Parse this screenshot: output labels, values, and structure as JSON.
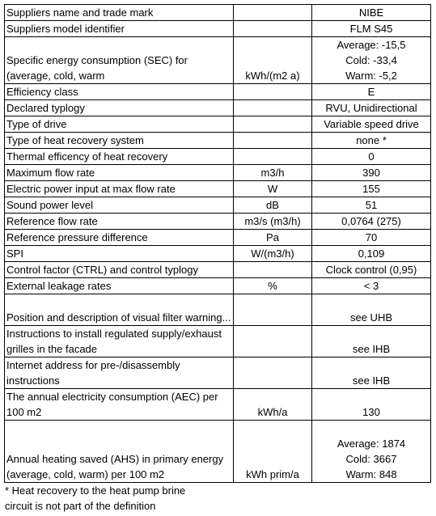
{
  "table": {
    "rows": [
      {
        "label": "Suppliers name and trade mark",
        "value": "NIBE"
      },
      {
        "label": "Suppliers model identifier",
        "value": "FLM S45"
      },
      {
        "label": "Specific energy consumption (SEC) for (average, cold, warm",
        "unit": "kWh/(m2 a)",
        "value": [
          "Average: -15,5",
          "Cold: -33,4",
          "Warm: -5,2"
        ]
      },
      {
        "label": "Efficiency class",
        "value": "E"
      },
      {
        "label": "Declared typlogy",
        "value": "RVU, Unidirectional"
      },
      {
        "label": "Type of drive",
        "value": "Variable speed drive"
      },
      {
        "label": "Type of heat recovery system",
        "value": "none *"
      },
      {
        "label": "Thermal efficency of heat recovery",
        "value": "0"
      },
      {
        "label": "Maximum flow rate",
        "unit": "m3/h",
        "value": "390"
      },
      {
        "label": "Electric power input at max flow rate",
        "unit": "W",
        "value": "155"
      },
      {
        "label": "Sound power level",
        "unit": "dB",
        "value": "51"
      },
      {
        "label": "Reference flow rate",
        "unit": "m3/s (m3/h)",
        "value": "0,0764 (275)"
      },
      {
        "label": "Reference pressure difference",
        "unit": "Pa",
        "value": "70"
      },
      {
        "label": "SPI",
        "unit": "W/(m3/h)",
        "value": "0,109"
      },
      {
        "label": "Control factor (CTRL) and control typlogy",
        "value": "Clock control (0,95)"
      },
      {
        "label": "External leakage rates",
        "unit": "%",
        "value": "< 3"
      },
      {
        "label": "Position and description of visual filter warning...",
        "value": "see UHB"
      },
      {
        "label": "Instructions to install regulated supply/exhaust grilles in the facade",
        "value": "see IHB"
      },
      {
        "label": "Internet address for pre-/disassembly instructions",
        "value": "see IHB"
      },
      {
        "label": "The annual electricity consumption (AEC) per 100 m2",
        "unit": "kWh/a",
        "value": "130"
      },
      {
        "label": "Annual heating saved (AHS) in primary energy (average, cold, warm) per 100 m2",
        "unit": "kWh prim/a",
        "value": [
          "Average: 1874",
          "Cold: 3667",
          "Warm: 848"
        ]
      }
    ]
  },
  "footnote": "* Heat recovery to the heat pump brine circuit is not part of the definition"
}
